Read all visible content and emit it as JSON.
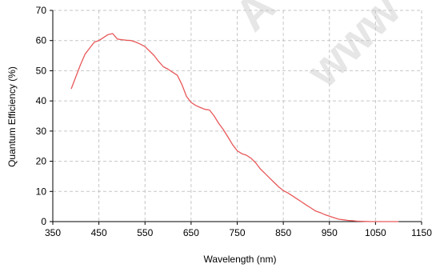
{
  "chart_data": {
    "type": "line",
    "title": "",
    "xlabel": "Wavelength (nm)",
    "ylabel": "Quantum Efficiency (%)",
    "xlim": [
      350,
      1150
    ],
    "ylim": [
      0,
      70
    ],
    "xticks": [
      350,
      450,
      550,
      650,
      750,
      850,
      950,
      1050,
      1150
    ],
    "yticks": [
      0,
      10,
      20,
      30,
      40,
      50,
      60,
      70
    ],
    "grid": true,
    "legend": "none",
    "watermark_text": [
      "A",
      "www"
    ],
    "series": [
      {
        "color": "#e8585a",
        "x": [
          390,
          400,
          410,
          420,
          430,
          440,
          450,
          460,
          470,
          480,
          490,
          500,
          510,
          520,
          530,
          540,
          550,
          560,
          570,
          580,
          590,
          600,
          610,
          620,
          630,
          640,
          650,
          660,
          670,
          680,
          690,
          700,
          710,
          720,
          730,
          740,
          750,
          760,
          770,
          780,
          790,
          800,
          810,
          820,
          830,
          840,
          850,
          860,
          870,
          880,
          890,
          900,
          910,
          920,
          930,
          940,
          950,
          960,
          970,
          980,
          990,
          1000,
          1010,
          1020,
          1030,
          1040,
          1050,
          1060,
          1070,
          1080,
          1090,
          1100
        ],
        "y": [
          44,
          48,
          52,
          55.5,
          57.5,
          59.5,
          60,
          61,
          62,
          62.3,
          60.5,
          60.3,
          60.1,
          60,
          59.5,
          58.8,
          58,
          56.5,
          55,
          53,
          51.3,
          50.5,
          49.5,
          48.5,
          45.5,
          41.5,
          39.5,
          38.5,
          37.8,
          37.2,
          37,
          35,
          32.5,
          30.5,
          28,
          25.5,
          23.5,
          22.5,
          22,
          21,
          19.5,
          17.5,
          16,
          14.5,
          13,
          11.5,
          10.3,
          9.5,
          8.5,
          7.5,
          6.5,
          5.5,
          4.5,
          3.5,
          3,
          2.3,
          1.8,
          1.3,
          0.8,
          0.6,
          0.4,
          0.3,
          0.15,
          0.1,
          0.05,
          0,
          0,
          0,
          0,
          0,
          0,
          0
        ]
      }
    ]
  }
}
